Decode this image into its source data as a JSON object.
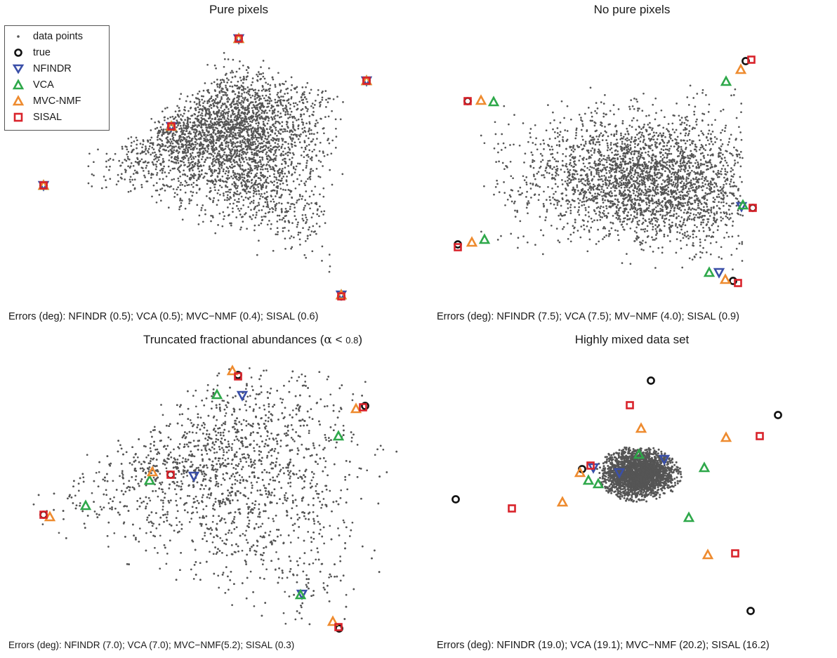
{
  "legend": {
    "items": [
      {
        "key": "data",
        "label": "data points",
        "color": "#555555"
      },
      {
        "key": "true",
        "label": "true",
        "color": "#111111"
      },
      {
        "key": "NFINDR",
        "label": "NFINDR",
        "color": "#3a4fa8"
      },
      {
        "key": "VCA",
        "label": "VCA",
        "color": "#2ea84a"
      },
      {
        "key": "MVC",
        "label": "MVC-NMF",
        "color": "#ee8b2f"
      },
      {
        "key": "SISAL",
        "label": "SISAL",
        "color": "#d9232b"
      }
    ]
  },
  "panels": [
    {
      "title": "Pure pixels",
      "caption": "Errors (deg): NFINDR (0.5); VCA (0.5); MVC−NMF (0.4); SISAL (0.6)"
    },
    {
      "title": "No pure pixels",
      "caption": "Errors (deg): NFINDR (7.5); VCA (7.5); MV−NMF (4.0); SISAL (0.9)"
    },
    {
      "title_main": "Truncated fractional abundances (",
      "title_alpha": "α",
      "title_rest": " < ",
      "title_small": "0.8",
      "title_end": ")",
      "caption": "Errors (deg): NFINDR (7.0); VCA (7.0); MVC−NMF(5.2); SISAL (0.3)"
    },
    {
      "title": "Highly mixed data set",
      "caption": "Errors (deg): NFINDR (19.0); VCA (19.1); MVC−NMF (20.2); SISAL (16.2)"
    }
  ],
  "chart_data": [
    {
      "type": "scatter",
      "title": "Pure pixels",
      "cloud": {
        "shape": "triangle",
        "vertices": [
          [
            62,
            264
          ],
          [
            340,
            55
          ],
          [
            522,
            115
          ],
          [
            486,
            422
          ],
          [
            244,
            180
          ]
        ]
      },
      "series": [
        {
          "name": "true",
          "marker": "circle",
          "points": [
            [
              62,
              264
            ],
            [
              340,
              55
            ],
            [
              522,
              115
            ],
            [
              486,
              422
            ],
            [
              244,
              180
            ]
          ]
        },
        {
          "name": "NFINDR",
          "marker": "triangle-down",
          "points": [
            [
              62,
              264
            ],
            [
              340,
              55
            ],
            [
              522,
              115
            ],
            [
              486,
              420
            ],
            [
              244,
              180
            ]
          ]
        },
        {
          "name": "VCA",
          "marker": "triangle-up",
          "points": [
            [
              62,
              264
            ],
            [
              340,
              55
            ],
            [
              522,
              115
            ],
            [
              486,
              420
            ],
            [
              244,
              180
            ]
          ]
        },
        {
          "name": "MVC-NMF",
          "marker": "triangle-up",
          "points": [
            [
              62,
              264
            ],
            [
              340,
              55
            ],
            [
              522,
              115
            ],
            [
              486,
              420
            ],
            [
              244,
              180
            ]
          ]
        },
        {
          "name": "SISAL",
          "marker": "square",
          "points": [
            [
              62,
              264
            ],
            [
              340,
              55
            ],
            [
              522,
              115
            ],
            [
              486,
              422
            ],
            [
              244,
              180
            ]
          ]
        }
      ]
    },
    {
      "type": "scatter",
      "title": "No pure pixels",
      "series": [
        {
          "name": "true",
          "marker": "circle",
          "points": [
            [
              652,
              348
            ],
            [
              1062,
              87
            ],
            [
              1044,
              400
            ],
            [
              1072,
              296
            ],
            [
              666,
              144
            ]
          ]
        },
        {
          "name": "NFINDR",
          "marker": "triangle-down",
          "points": [
            [
              1024,
              388
            ],
            [
              1056,
              294
            ]
          ]
        },
        {
          "name": "VCA",
          "marker": "triangle-up",
          "points": [
            [
              690,
              341
            ],
            [
              1010,
              388
            ],
            [
              1034,
              116
            ],
            [
              1058,
              292
            ],
            [
              703,
              145
            ]
          ]
        },
        {
          "name": "MVC-NMF",
          "marker": "triangle-up",
          "points": [
            [
              672,
              345
            ],
            [
              1055,
              99
            ],
            [
              1033,
              398
            ],
            [
              685,
              143
            ]
          ]
        },
        {
          "name": "SISAL",
          "marker": "square",
          "points": [
            [
              652,
              352
            ],
            [
              1070,
              85
            ],
            [
              1051,
              403
            ],
            [
              1072,
              296
            ],
            [
              666,
              144
            ]
          ]
        }
      ]
    },
    {
      "type": "scatter",
      "title": "Truncated fractional abundances (α < 0.8)",
      "series": [
        {
          "name": "true",
          "marker": "circle",
          "points": [
            [
              62,
              733
            ],
            [
              339,
              534
            ],
            [
              520,
              578
            ],
            [
              483,
              895
            ],
            [
              243,
              676
            ]
          ]
        },
        {
          "name": "NFINDR",
          "marker": "triangle-down",
          "points": [
            [
              345,
              563
            ],
            [
              276,
              678
            ],
            [
              430,
              846
            ]
          ]
        },
        {
          "name": "VCA",
          "marker": "triangle-up",
          "points": [
            [
              122,
              720
            ],
            [
              309,
              562
            ],
            [
              482,
              621
            ],
            [
              213,
              684
            ],
            [
              428,
              847
            ]
          ]
        },
        {
          "name": "MVC-NMF",
          "marker": "triangle-up",
          "points": [
            [
              71,
              736
            ],
            [
              331,
              528
            ],
            [
              507,
              582
            ],
            [
              474,
              885
            ],
            [
              217,
              672
            ]
          ]
        },
        {
          "name": "SISAL",
          "marker": "square",
          "points": [
            [
              62,
              733
            ],
            [
              339,
              536
            ],
            [
              517,
              580
            ],
            [
              482,
              893
            ],
            [
              243,
              676
            ]
          ]
        }
      ]
    },
    {
      "type": "scatter",
      "title": "Highly mixed data set",
      "series": [
        {
          "name": "true",
          "marker": "circle",
          "points": [
            [
              927,
              542
            ],
            [
              1108,
              591
            ],
            [
              649,
              711
            ],
            [
              1069,
              870
            ],
            [
              829,
              668
            ]
          ]
        },
        {
          "name": "NFINDR",
          "marker": "triangle-down",
          "points": [
            [
              946,
              654
            ],
            [
              882,
              673
            ],
            [
              845,
              666
            ]
          ]
        },
        {
          "name": "VCA",
          "marker": "triangle-up",
          "points": [
            [
              910,
              647
            ],
            [
              838,
              684
            ],
            [
              852,
              689
            ],
            [
              1003,
              666
            ],
            [
              981,
              737
            ]
          ]
        },
        {
          "name": "MVC-NMF",
          "marker": "triangle-up",
          "points": [
            [
              913,
              610
            ],
            [
              1034,
              623
            ],
            [
              801,
              715
            ],
            [
              1008,
              790
            ],
            [
              826,
              673
            ]
          ]
        },
        {
          "name": "SISAL",
          "marker": "square",
          "points": [
            [
              897,
              577
            ],
            [
              1082,
              621
            ],
            [
              729,
              724
            ],
            [
              1047,
              788
            ],
            [
              841,
              663
            ]
          ]
        }
      ]
    }
  ]
}
